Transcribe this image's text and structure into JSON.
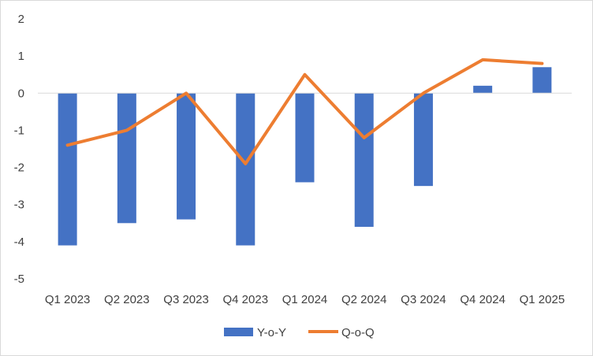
{
  "chart_data": {
    "type": "bar",
    "categories": [
      "Q1 2023",
      "Q2 2023",
      "Q3 2023",
      "Q4 2023",
      "Q1 2024",
      "Q2 2024",
      "Q3 2024",
      "Q4 2024",
      "Q1 2025"
    ],
    "series": [
      {
        "name": "Y-o-Y",
        "type": "bar",
        "color": "#4472c4",
        "values": [
          -4.1,
          -3.5,
          -3.4,
          -4.1,
          -2.4,
          -3.6,
          -2.5,
          0.2,
          0.7
        ]
      },
      {
        "name": "Q-o-Q",
        "type": "line",
        "color": "#ed7d31",
        "values": [
          -1.4,
          -1.0,
          0.0,
          -1.9,
          0.5,
          -1.2,
          0.0,
          0.9,
          0.8
        ]
      }
    ],
    "ylim": [
      -5,
      2
    ],
    "yticks": [
      "2",
      "1",
      "0",
      "-1",
      "-2",
      "-3",
      "-4",
      "-5"
    ],
    "grid": false,
    "legend": "bottom",
    "title": "",
    "xlabel": "",
    "ylabel": ""
  }
}
